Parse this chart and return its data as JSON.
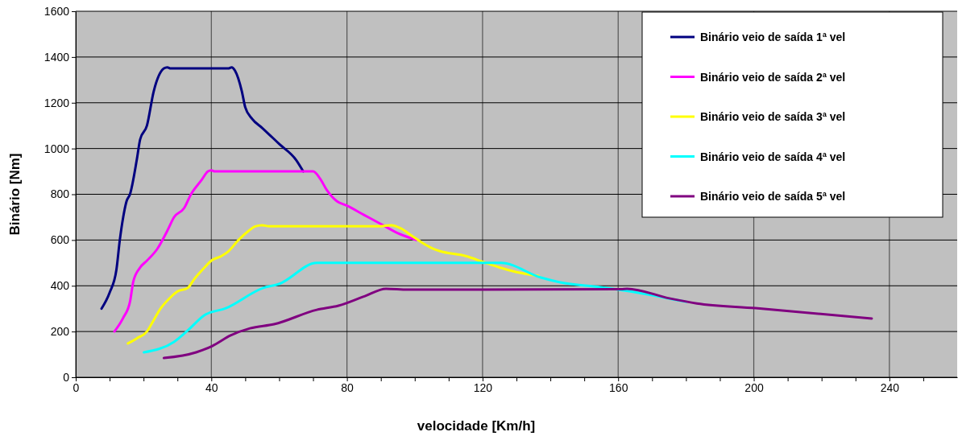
{
  "chart_data": {
    "type": "line",
    "xlabel": "velocidade [Km/h]",
    "ylabel": "Binário [Nm]",
    "xlim": [
      0,
      260
    ],
    "ylim": [
      0,
      1600
    ],
    "xticks": [
      0,
      {
        "value": 10,
        "label": null
      },
      {
        "value": 20,
        "label": null
      },
      {
        "value": 30,
        "label": null
      },
      40,
      {
        "value": 50,
        "label": null
      },
      {
        "value": 60,
        "label": null
      },
      {
        "value": 70,
        "label": null
      },
      80,
      {
        "value": 90,
        "label": null
      },
      {
        "value": 100,
        "label": null
      },
      {
        "value": 110,
        "label": null
      },
      120,
      {
        "value": 130,
        "label": null
      },
      {
        "value": 140,
        "label": null
      },
      {
        "value": 150,
        "label": null
      },
      160,
      {
        "value": 170,
        "label": null
      },
      {
        "value": 180,
        "label": null
      },
      {
        "value": 190,
        "label": null
      },
      200,
      {
        "value": 210,
        "label": null
      },
      {
        "value": 220,
        "label": null
      },
      {
        "value": 230,
        "label": null
      },
      240,
      {
        "value": 250,
        "label": null
      }
    ],
    "yticks": [
      0,
      200,
      400,
      600,
      800,
      1000,
      1200,
      1400,
      1600
    ],
    "grid": true,
    "legend": "top right",
    "series": [
      {
        "name": "Binário veio de saída 1ª vel",
        "color": "#000080",
        "x": [
          7.6,
          10,
          12,
          13,
          14,
          15,
          16,
          18,
          19,
          21,
          23,
          26,
          27,
          28,
          45,
          46,
          47,
          49,
          50,
          52,
          55,
          60,
          65,
          67.1
        ],
        "values": [
          300,
          370,
          470,
          600,
          700,
          770,
          800,
          950,
          1040,
          1100,
          1250,
          1350,
          1355,
          1350,
          1350,
          1355,
          1340,
          1250,
          1180,
          1130,
          1090,
          1020,
          950,
          900
        ]
      },
      {
        "name": "Binário veio de saída 2ª vel",
        "color": "#ff00ff",
        "x": [
          11.4,
          14,
          16,
          17,
          19,
          21,
          24,
          27,
          29,
          32,
          34,
          37,
          39,
          40,
          41,
          68,
          70,
          72,
          74,
          77,
          80,
          85,
          90,
          95,
          100.5
        ],
        "values": [
          200,
          260,
          330,
          420,
          480,
          510,
          560,
          640,
          700,
          740,
          800,
          860,
          900,
          905,
          900,
          900,
          900,
          870,
          820,
          770,
          750,
          710,
          670,
          630,
          600
        ]
      },
      {
        "name": "Binário veio de saída 3ª vel",
        "color": "#ffff00",
        "x": [
          15.4,
          18,
          21,
          23,
          25,
          28,
          30,
          33,
          35,
          38,
          40,
          43,
          45,
          48,
          51,
          53,
          55,
          57,
          60,
          90,
          93,
          96,
          99,
          102,
          105,
          107.3,
          115,
          120.4,
          125,
          130,
          136.5
        ],
        "values": [
          148,
          170,
          200,
          250,
          300,
          350,
          375,
          390,
          430,
          480,
          510,
          530,
          550,
          600,
          640,
          660,
          665,
          660,
          660,
          660,
          665,
          650,
          620,
          590,
          565,
          552,
          530,
          503,
          480,
          460,
          443
        ]
      },
      {
        "name": "Binário veio de saída 4ª vel",
        "color": "#00ffff",
        "x": [
          20.1,
          29,
          33.2,
          37.9,
          44.3,
          55.2,
          60,
          71.1,
          125.4,
          137.2,
          142.9,
          154.7,
          167.3,
          180
        ],
        "values": [
          109,
          155,
          207,
          271,
          302,
          390,
          408,
          500,
          500,
          436,
          415,
          394,
          366,
          330
        ]
      },
      {
        "name": "Binário veio de saída 5ª vel",
        "color": "#800080",
        "x": [
          26,
          35.5,
          40.3,
          45.7,
          51.4,
          58.5,
          71.1,
          77.5,
          85.3,
          91.5,
          97.9,
          160.9,
          162.6,
          175.1,
          183.2,
          200.5,
          234.8
        ],
        "values": [
          84,
          109,
          137,
          183,
          214,
          232,
          295,
          313,
          355,
          387,
          383,
          385,
          387,
          345,
          323,
          302,
          257
        ]
      }
    ]
  }
}
